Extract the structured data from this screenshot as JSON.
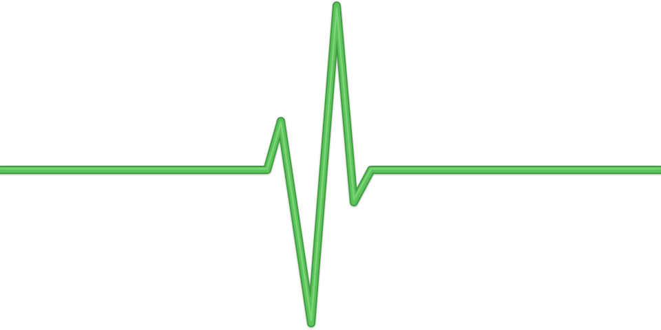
{
  "graphic": {
    "subject": "heartbeat-pulse-line",
    "colors": {
      "background": "#ffffff",
      "line_main": "#5cc25c",
      "line_edge": "#3f9e40",
      "line_highlight": "#8fe38a"
    }
  }
}
